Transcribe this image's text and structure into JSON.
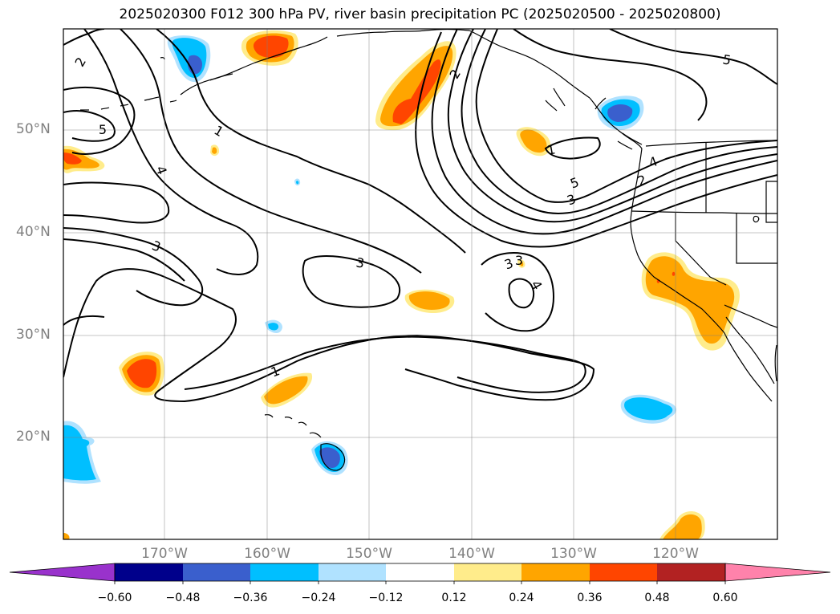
{
  "title": "2025020300 F012 300 hPa PV, river basin precipitation PC (2025020500 - 2025020800)",
  "map": {
    "lat_labels": [
      "50°N",
      "40°N",
      "30°N",
      "20°N"
    ],
    "lon_labels": [
      "170°W",
      "160°W",
      "150°W",
      "140°W",
      "130°W",
      "120°W"
    ],
    "contour_labels": [
      "2",
      "5",
      "1",
      "4",
      "3",
      "3",
      "3",
      "4",
      "1",
      "5",
      "3",
      "4",
      "2",
      "5",
      "2",
      "3",
      "1"
    ]
  },
  "colorbar": {
    "ticks": [
      "−0.60",
      "−0.48",
      "−0.36",
      "−0.24",
      "−0.12",
      "0.12",
      "0.24",
      "0.36",
      "0.48",
      "0.60"
    ],
    "colors": [
      "#9932cc",
      "#00008b",
      "#3a5fcd",
      "#00bfff",
      "#b0e2ff",
      "#ffffff",
      "#ffec8b",
      "#ffa500",
      "#ff4500",
      "#b22222",
      "#ff82ab"
    ]
  }
}
